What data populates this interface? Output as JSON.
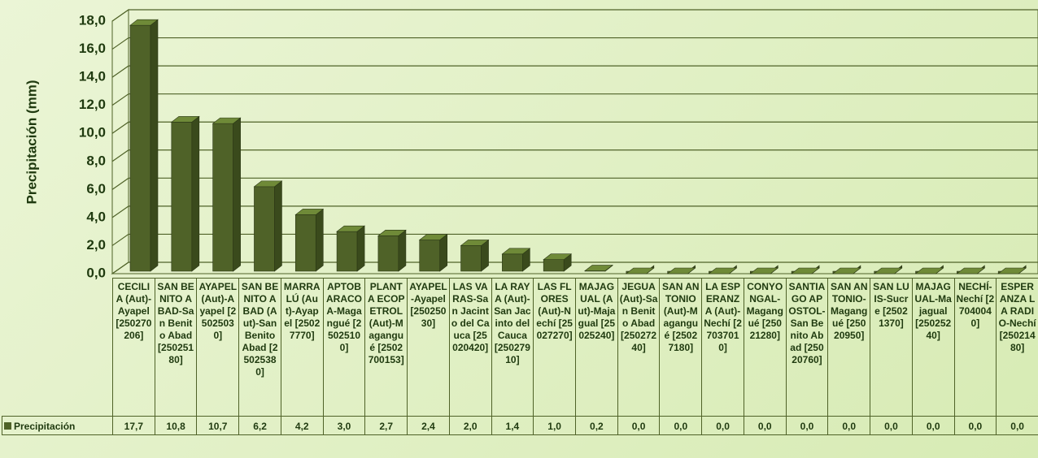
{
  "chart_data": {
    "type": "bar3d",
    "y_label": "Precipitación (mm)",
    "categories": [
      "CECILIA (Aut)-Ayapel [250270206]",
      "SAN BENITO ABAD-San Benito Abad [25025180]",
      "AYAPEL (Aut)-Ayapel [25025030]",
      "SAN BENITO ABAD (Aut)-San Benito Abad [25025380]",
      "MARRALÚ (Aut)-Ayapel [25027770]",
      "APTOBARACOA-Magangué [25025100]",
      "PLANTA ECOPETROL (Aut)-Magangué [2502700153]",
      "AYAPEL-Ayapel [25025030]",
      "LAS VARAS-San Jacinto del Cauca [25020420]",
      "LA RAYA (Aut)-San Jacinto del Cauca [25027910]",
      "LAS FLORES (Aut)-Nechí [25027270]",
      "MAJAGUAL (Aut)-Majagual [25025240]",
      "JEGUA (Aut)-San Benito Abad [25027240]",
      "SAN ANTONIO (Aut)-Magangué [25027180]",
      "LA ESPERANZA (Aut)-Nechí [27037010]",
      "CONYONGAL-Magangué [25021280]",
      "SANTIAGO APOSTOL-San Benito Abad [25020760]",
      "SAN ANTONIO-Magangué [25020950]",
      "SAN LUIS-Sucre [25021370]",
      "MAJAGUAL-Majagual [25025240]",
      "NECHÍ-Nechí [27040040]",
      "ESPERANZA LA RADIO-Nechí [25021480]"
    ],
    "series": [
      {
        "name": "Precipitación",
        "color": "#4f6228",
        "values": [
          17.7,
          10.8,
          10.7,
          6.2,
          4.2,
          3.0,
          2.7,
          2.4,
          2.0,
          1.4,
          1.0,
          0.2,
          0.0,
          0.0,
          0.0,
          0.0,
          0.0,
          0.0,
          0.0,
          0.0,
          0.0,
          0.0
        ],
        "value_labels": [
          "17,7",
          "10,8",
          "10,7",
          "6,2",
          "4,2",
          "3,0",
          "2,7",
          "2,4",
          "2,0",
          "1,4",
          "1,0",
          "0,2",
          "0,0",
          "0,0",
          "0,0",
          "0,0",
          "0,0",
          "0,0",
          "0,0",
          "0,0",
          "0,0",
          "0,0"
        ]
      }
    ],
    "ylim": [
      0,
      18
    ],
    "yticks": [
      {
        "value": 0,
        "label": "0,0"
      },
      {
        "value": 2,
        "label": "2,0"
      },
      {
        "value": 4,
        "label": "4,0"
      },
      {
        "value": 6,
        "label": "6,0"
      },
      {
        "value": 8,
        "label": "8,0"
      },
      {
        "value": 10,
        "label": "10,0"
      },
      {
        "value": 12,
        "label": "12,0"
      },
      {
        "value": 14,
        "label": "14,0"
      },
      {
        "value": 16,
        "label": "16,0"
      },
      {
        "value": 18,
        "label": "18,0"
      }
    ],
    "grid": true
  }
}
